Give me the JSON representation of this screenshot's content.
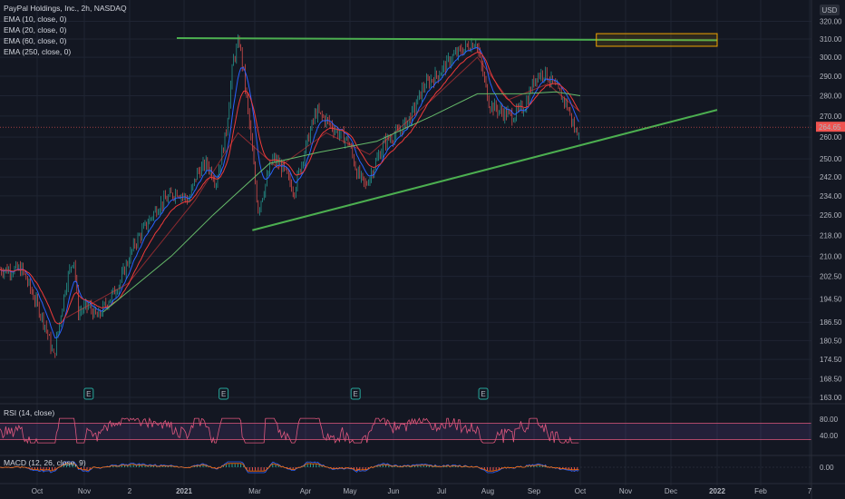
{
  "chart_data": {
    "type": "line",
    "header": {
      "title": "PayPal Holdings, Inc., 2h, NASDAQ",
      "indicators": [
        "EMA (10, close, 0)",
        "EMA (20, close, 0)",
        "EMA (60, close, 0)",
        "EMA (250, close, 0)"
      ]
    },
    "currency": "USD",
    "price_axis": {
      "scale": "log",
      "ticks": [
        163.0,
        168.5,
        174.5,
        180.5,
        186.5,
        194.5,
        202.5,
        210.0,
        218.0,
        226.0,
        234.0,
        242.0,
        250.0,
        260.0,
        270.0,
        280.0,
        290.0,
        300.0,
        310.0,
        320.0
      ]
    },
    "last_price": "264.65",
    "time_axis": {
      "labels": [
        "Oct",
        "Nov",
        "2",
        "2021",
        "Mar",
        "Apr",
        "May",
        "Jun",
        "Jul",
        "Aug",
        "Sep",
        "Oct",
        "Nov",
        "Dec",
        "2022",
        "Feb",
        "7"
      ]
    },
    "price_anchors": [
      {
        "t": "2020-09-21",
        "v": 205
      },
      {
        "t": "2020-10-06",
        "v": 186
      },
      {
        "t": "2020-10-12",
        "v": 175
      },
      {
        "t": "2020-10-20",
        "v": 200
      },
      {
        "t": "2020-10-25",
        "v": 210
      },
      {
        "t": "2020-10-28",
        "v": 190
      },
      {
        "t": "2020-11-04",
        "v": 192
      },
      {
        "t": "2020-11-10",
        "v": 188
      },
      {
        "t": "2020-11-25",
        "v": 200
      },
      {
        "t": "2020-12-05",
        "v": 215
      },
      {
        "t": "2020-12-18",
        "v": 230
      },
      {
        "t": "2020-12-28",
        "v": 236
      },
      {
        "t": "2021-01-05",
        "v": 232
      },
      {
        "t": "2021-01-12",
        "v": 244
      },
      {
        "t": "2021-01-20",
        "v": 248
      },
      {
        "t": "2021-01-28",
        "v": 240
      },
      {
        "t": "2021-02-05",
        "v": 262
      },
      {
        "t": "2021-02-11",
        "v": 298
      },
      {
        "t": "2021-02-16",
        "v": 309
      },
      {
        "t": "2021-02-20",
        "v": 290
      },
      {
        "t": "2021-02-26",
        "v": 258
      },
      {
        "t": "2021-03-03",
        "v": 228
      },
      {
        "t": "2021-03-08",
        "v": 240
      },
      {
        "t": "2021-03-12",
        "v": 250
      },
      {
        "t": "2021-03-18",
        "v": 246
      },
      {
        "t": "2021-03-25",
        "v": 236
      },
      {
        "t": "2021-04-01",
        "v": 255
      },
      {
        "t": "2021-04-08",
        "v": 272
      },
      {
        "t": "2021-04-15",
        "v": 268
      },
      {
        "t": "2021-04-23",
        "v": 262
      },
      {
        "t": "2021-04-30",
        "v": 258
      },
      {
        "t": "2021-05-06",
        "v": 244
      },
      {
        "t": "2021-05-12",
        "v": 238
      },
      {
        "t": "2021-05-17",
        "v": 245
      },
      {
        "t": "2021-05-26",
        "v": 258
      },
      {
        "t": "2021-06-04",
        "v": 262
      },
      {
        "t": "2021-06-12",
        "v": 270
      },
      {
        "t": "2021-06-20",
        "v": 285
      },
      {
        "t": "2021-06-30",
        "v": 292
      },
      {
        "t": "2021-07-08",
        "v": 300
      },
      {
        "t": "2021-07-15",
        "v": 304
      },
      {
        "t": "2021-07-24",
        "v": 309
      },
      {
        "t": "2021-07-28",
        "v": 294
      },
      {
        "t": "2021-08-02",
        "v": 276
      },
      {
        "t": "2021-08-10",
        "v": 272
      },
      {
        "t": "2021-08-18",
        "v": 270
      },
      {
        "t": "2021-08-26",
        "v": 275
      },
      {
        "t": "2021-09-02",
        "v": 290
      },
      {
        "t": "2021-09-08",
        "v": 292
      },
      {
        "t": "2021-09-15",
        "v": 284
      },
      {
        "t": "2021-09-22",
        "v": 276
      },
      {
        "t": "2021-09-28",
        "v": 262
      },
      {
        "t": "2021-10-01",
        "v": 264.65
      }
    ],
    "ema_250_anchors": [
      {
        "t": "2020-11-14",
        "v": 190
      },
      {
        "t": "2020-12-25",
        "v": 210
      },
      {
        "t": "2021-01-25",
        "v": 226
      },
      {
        "t": "2021-03-10",
        "v": 248
      },
      {
        "t": "2021-04-10",
        "v": 253
      },
      {
        "t": "2021-05-20",
        "v": 258
      },
      {
        "t": "2021-06-25",
        "v": 270
      },
      {
        "t": "2021-07-25",
        "v": 281
      },
      {
        "t": "2021-08-25",
        "v": 281
      },
      {
        "t": "2021-09-15",
        "v": 282
      },
      {
        "t": "2021-10-01",
        "v": 280
      }
    ],
    "ema_60_anchors": [
      {
        "t": "2020-10-20",
        "v": 188
      },
      {
        "t": "2020-12-01",
        "v": 200
      },
      {
        "t": "2021-01-10",
        "v": 232
      },
      {
        "t": "2021-02-15",
        "v": 262
      },
      {
        "t": "2021-03-15",
        "v": 246
      },
      {
        "t": "2021-04-15",
        "v": 262
      },
      {
        "t": "2021-05-15",
        "v": 252
      },
      {
        "t": "2021-06-25",
        "v": 278
      },
      {
        "t": "2021-07-25",
        "v": 300
      },
      {
        "t": "2021-08-15",
        "v": 278
      },
      {
        "t": "2021-09-10",
        "v": 286
      },
      {
        "t": "2021-10-01",
        "v": 272
      }
    ],
    "resistance_line": {
      "from": {
        "t": "2020-12-28",
        "v": 310.5
      },
      "to": {
        "t": "2022-01-01",
        "v": 309.3
      },
      "color": "#4caf50"
    },
    "support_line": {
      "from": {
        "t": "2021-02-27",
        "v": 220
      },
      "to": {
        "t": "2022-01-01",
        "v": 273
      },
      "color": "#4caf50"
    },
    "highlight_box": {
      "from": {
        "t": "2021-10-12",
        "v": 313
      },
      "to": {
        "t": "2022-01-01",
        "v": 306
      },
      "color": "#f0a500"
    },
    "earnings_markers": [
      {
        "t": "2020-11-04",
        "label": "E"
      },
      {
        "t": "2021-02-03",
        "label": "E"
      },
      {
        "t": "2021-05-05",
        "label": "E"
      },
      {
        "t": "2021-07-29",
        "label": "E"
      }
    ],
    "rsi": {
      "label": "RSI (14, close)",
      "ticks": [
        40.0,
        80.0
      ],
      "band": [
        30,
        70
      ],
      "color": "#e0577e",
      "range": [
        20,
        85
      ]
    },
    "macd": {
      "label": "MACD (12, 26, close, 9)",
      "ticks": [
        "0.00"
      ]
    },
    "colors": {
      "background": "#131722",
      "grid": "#1f2433",
      "up": "#26a69a",
      "down": "#ef5350",
      "ema_10": "#2962ff",
      "ema_20": "#ef3a3a",
      "ema_60": "#66bb6a",
      "ema_250": "#8bc34a",
      "trendline": "#4caf50",
      "box": "#f0a500",
      "last_price_bg": "#ef5350",
      "rsi_band": "rgba(126,87,194,0.15)"
    }
  }
}
